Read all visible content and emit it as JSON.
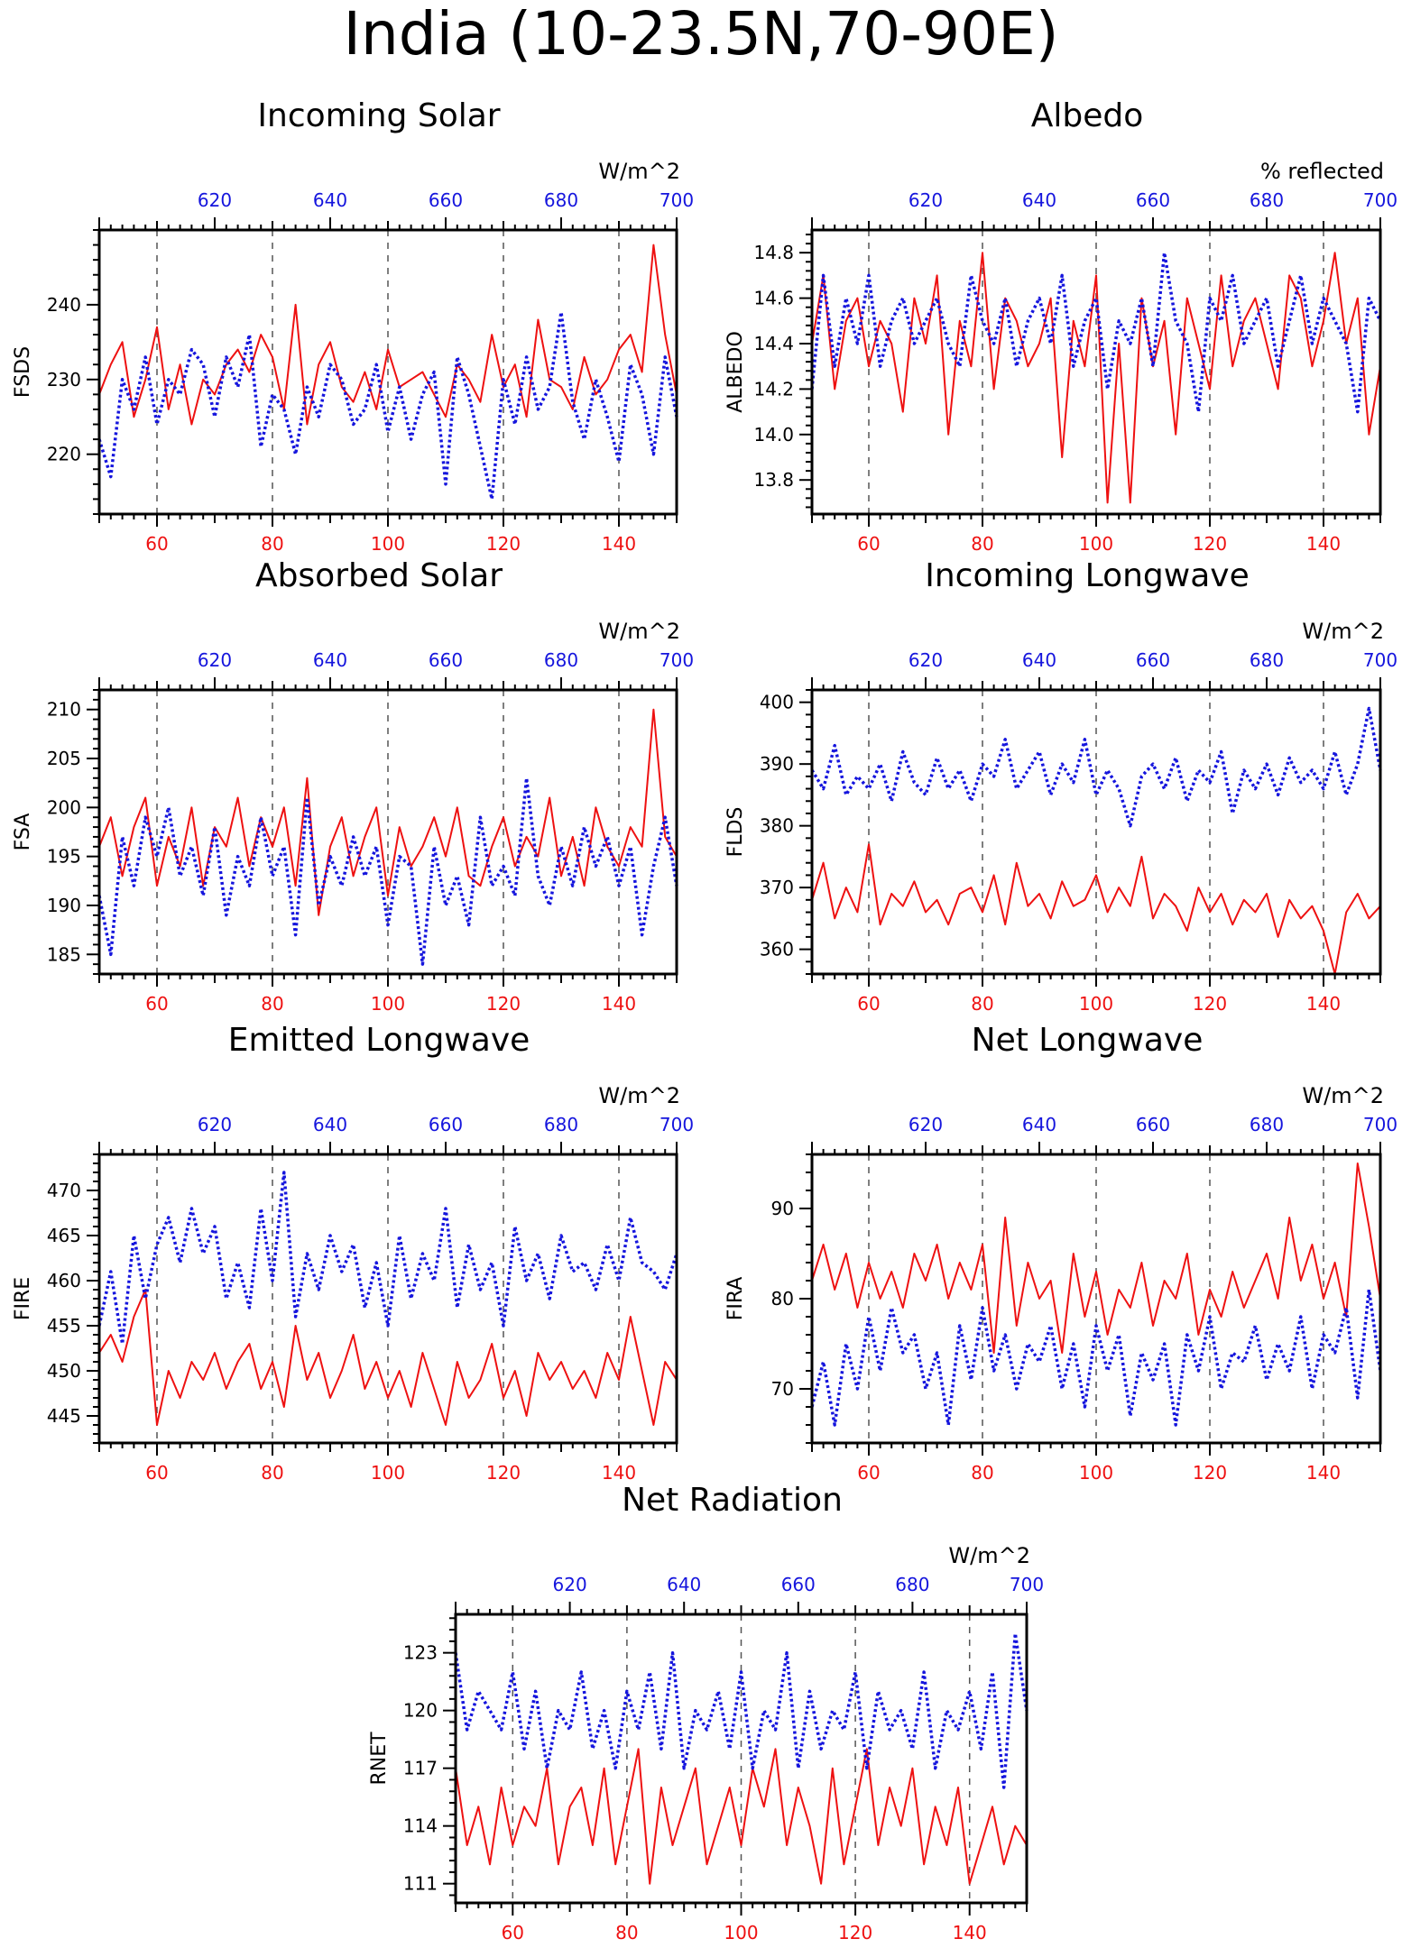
{
  "title": "India (10-23.5N,70-90E)",
  "colors": {
    "red": "#ee1111",
    "blue": "#1515dd",
    "frame": "#000000",
    "grid": "#555555"
  },
  "chart_data": [
    {
      "type": "line",
      "title": "Incoming Solar",
      "units": "W/m^2",
      "ylabel": "FSDS",
      "xlim": [
        50,
        150
      ],
      "ylim": [
        212,
        250
      ],
      "yticks": [
        220,
        230,
        240
      ],
      "xticks": [
        60,
        80,
        100,
        120,
        140
      ],
      "top_axis": {
        "ticks": [
          620,
          640,
          660,
          680,
          700
        ],
        "xlim": [
          600,
          700
        ]
      },
      "series": [
        {
          "color": "red",
          "style": "solid",
          "x_axis": "bottom",
          "values": [
            228,
            232,
            235,
            225,
            230,
            237,
            226,
            232,
            224,
            230,
            228,
            232,
            234,
            231,
            236,
            233,
            226,
            240,
            224,
            232,
            235,
            229,
            227,
            231,
            226,
            234,
            229,
            230,
            231,
            228,
            225,
            232,
            230,
            227,
            236,
            229,
            232,
            225,
            238,
            230,
            229,
            226,
            233,
            228,
            230,
            234,
            236,
            231,
            248,
            236,
            228
          ]
        },
        {
          "color": "blue",
          "style": "dotted",
          "x_axis": "top",
          "values": [
            222,
            217,
            230,
            226,
            233,
            224,
            230,
            228,
            234,
            232,
            225,
            233,
            229,
            236,
            221,
            228,
            226,
            220,
            229,
            225,
            232,
            230,
            224,
            226,
            232,
            223,
            229,
            222,
            228,
            231,
            216,
            233,
            228,
            221,
            214,
            230,
            224,
            233,
            226,
            229,
            239,
            227,
            222,
            230,
            225,
            219,
            232,
            228,
            220,
            233,
            225
          ]
        }
      ]
    },
    {
      "type": "line",
      "title": "Albedo",
      "units": "% reflected",
      "ylabel": "ALBEDO",
      "xlim": [
        50,
        150
      ],
      "ylim": [
        13.65,
        14.9
      ],
      "yticks": [
        13.8,
        14.0,
        14.2,
        14.4,
        14.6,
        14.8
      ],
      "xticks": [
        60,
        80,
        100,
        120,
        140
      ],
      "top_axis": {
        "ticks": [
          620,
          640,
          660,
          680,
          700
        ],
        "xlim": [
          600,
          700
        ]
      },
      "series": [
        {
          "color": "red",
          "style": "solid",
          "x_axis": "bottom",
          "values": [
            14.4,
            14.7,
            14.2,
            14.5,
            14.6,
            14.3,
            14.5,
            14.4,
            14.1,
            14.6,
            14.4,
            14.7,
            14.0,
            14.5,
            14.3,
            14.8,
            14.2,
            14.6,
            14.5,
            14.3,
            14.4,
            14.6,
            13.9,
            14.5,
            14.3,
            14.7,
            13.7,
            14.4,
            13.7,
            14.6,
            14.3,
            14.5,
            14.0,
            14.6,
            14.4,
            14.2,
            14.7,
            14.3,
            14.5,
            14.6,
            14.4,
            14.2,
            14.7,
            14.6,
            14.3,
            14.5,
            14.8,
            14.4,
            14.6,
            14.0,
            14.3
          ]
        },
        {
          "color": "blue",
          "style": "dotted",
          "x_axis": "top",
          "values": [
            14.2,
            14.7,
            14.3,
            14.6,
            14.4,
            14.7,
            14.3,
            14.5,
            14.6,
            14.4,
            14.5,
            14.6,
            14.4,
            14.3,
            14.7,
            14.5,
            14.4,
            14.6,
            14.3,
            14.5,
            14.6,
            14.4,
            14.7,
            14.3,
            14.5,
            14.6,
            14.2,
            14.5,
            14.4,
            14.6,
            14.3,
            14.8,
            14.5,
            14.4,
            14.1,
            14.6,
            14.5,
            14.7,
            14.4,
            14.5,
            14.6,
            14.3,
            14.5,
            14.7,
            14.4,
            14.6,
            14.5,
            14.4,
            14.1,
            14.6,
            14.5
          ]
        }
      ]
    },
    {
      "type": "line",
      "title": "Absorbed Solar",
      "units": "W/m^2",
      "ylabel": "FSA",
      "xlim": [
        50,
        150
      ],
      "ylim": [
        183,
        212
      ],
      "yticks": [
        185,
        190,
        195,
        200,
        205,
        210
      ],
      "xticks": [
        60,
        80,
        100,
        120,
        140
      ],
      "top_axis": {
        "ticks": [
          620,
          640,
          660,
          680,
          700
        ],
        "xlim": [
          600,
          700
        ]
      },
      "series": [
        {
          "color": "red",
          "style": "solid",
          "x_axis": "bottom",
          "values": [
            196,
            199,
            193,
            198,
            201,
            192,
            197,
            194,
            200,
            192,
            198,
            196,
            201,
            194,
            199,
            196,
            200,
            192,
            203,
            189,
            196,
            199,
            193,
            197,
            200,
            191,
            198,
            194,
            196,
            199,
            195,
            200,
            193,
            192,
            196,
            199,
            194,
            197,
            195,
            201,
            193,
            197,
            192,
            200,
            196,
            194,
            198,
            196,
            210,
            197,
            195
          ]
        },
        {
          "color": "blue",
          "style": "dotted",
          "x_axis": "top",
          "values": [
            191,
            185,
            197,
            192,
            199,
            195,
            200,
            193,
            196,
            191,
            198,
            189,
            195,
            192,
            199,
            193,
            196,
            187,
            201,
            190,
            195,
            192,
            197,
            193,
            196,
            188,
            195,
            194,
            184,
            196,
            190,
            193,
            188,
            199,
            192,
            194,
            191,
            203,
            193,
            190,
            196,
            192,
            198,
            194,
            197,
            192,
            196,
            187,
            194,
            199,
            192
          ]
        }
      ]
    },
    {
      "type": "line",
      "title": "Incoming Longwave",
      "units": "W/m^2",
      "ylabel": "FLDS",
      "xlim": [
        50,
        150
      ],
      "ylim": [
        356,
        402
      ],
      "yticks": [
        360,
        370,
        380,
        390,
        400
      ],
      "xticks": [
        60,
        80,
        100,
        120,
        140
      ],
      "top_axis": {
        "ticks": [
          620,
          640,
          660,
          680,
          700
        ],
        "xlim": [
          600,
          700
        ]
      },
      "series": [
        {
          "color": "red",
          "style": "solid",
          "x_axis": "bottom",
          "values": [
            368,
            374,
            365,
            370,
            366,
            377,
            364,
            369,
            367,
            371,
            366,
            368,
            364,
            369,
            370,
            366,
            372,
            364,
            374,
            367,
            369,
            365,
            371,
            367,
            368,
            372,
            366,
            370,
            367,
            375,
            365,
            369,
            367,
            363,
            370,
            366,
            369,
            364,
            368,
            366,
            369,
            362,
            368,
            365,
            367,
            363,
            356,
            366,
            369,
            365,
            367
          ]
        },
        {
          "color": "blue",
          "style": "dotted",
          "x_axis": "top",
          "values": [
            389,
            386,
            393,
            385,
            388,
            386,
            390,
            384,
            392,
            387,
            385,
            391,
            386,
            389,
            384,
            390,
            388,
            394,
            386,
            389,
            392,
            385,
            390,
            387,
            394,
            385,
            389,
            386,
            380,
            388,
            390,
            386,
            391,
            384,
            389,
            387,
            392,
            382,
            389,
            386,
            390,
            385,
            391,
            387,
            389,
            386,
            392,
            385,
            390,
            399,
            389
          ]
        }
      ]
    },
    {
      "type": "line",
      "title": "Emitted Longwave",
      "units": "W/m^2",
      "ylabel": "FIRE",
      "xlim": [
        50,
        150
      ],
      "ylim": [
        442,
        474
      ],
      "yticks": [
        445,
        450,
        455,
        460,
        465,
        470
      ],
      "xticks": [
        60,
        80,
        100,
        120,
        140
      ],
      "top_axis": {
        "ticks": [
          620,
          640,
          660,
          680,
          700
        ],
        "xlim": [
          600,
          700
        ]
      },
      "series": [
        {
          "color": "red",
          "style": "solid",
          "x_axis": "bottom",
          "values": [
            452,
            454,
            451,
            456,
            459,
            444,
            450,
            447,
            451,
            449,
            452,
            448,
            451,
            453,
            448,
            451,
            446,
            455,
            449,
            452,
            447,
            450,
            454,
            448,
            451,
            447,
            450,
            446,
            452,
            448,
            444,
            451,
            447,
            449,
            453,
            447,
            450,
            445,
            452,
            449,
            451,
            448,
            450,
            447,
            452,
            449,
            456,
            450,
            444,
            451,
            449
          ]
        },
        {
          "color": "blue",
          "style": "dotted",
          "x_axis": "top",
          "values": [
            455,
            461,
            453,
            465,
            458,
            464,
            467,
            462,
            468,
            463,
            466,
            458,
            462,
            457,
            468,
            460,
            472,
            456,
            463,
            459,
            465,
            461,
            464,
            457,
            462,
            455,
            465,
            458,
            463,
            460,
            468,
            457,
            464,
            459,
            462,
            455,
            466,
            460,
            463,
            458,
            465,
            461,
            462,
            459,
            464,
            460,
            467,
            462,
            461,
            459,
            463
          ]
        }
      ]
    },
    {
      "type": "line",
      "title": "Net Longwave",
      "units": "W/m^2",
      "ylabel": "FIRA",
      "xlim": [
        50,
        150
      ],
      "ylim": [
        64,
        96
      ],
      "yticks": [
        70,
        80,
        90
      ],
      "xticks": [
        60,
        80,
        100,
        120,
        140
      ],
      "top_axis": {
        "ticks": [
          620,
          640,
          660,
          680,
          700
        ],
        "xlim": [
          600,
          700
        ]
      },
      "series": [
        {
          "color": "red",
          "style": "solid",
          "x_axis": "bottom",
          "values": [
            82,
            86,
            81,
            85,
            79,
            84,
            80,
            83,
            79,
            85,
            82,
            86,
            80,
            84,
            81,
            86,
            74,
            89,
            77,
            84,
            80,
            82,
            74,
            85,
            78,
            83,
            76,
            81,
            79,
            84,
            77,
            82,
            80,
            85,
            76,
            81,
            78,
            83,
            79,
            82,
            85,
            80,
            89,
            82,
            86,
            80,
            84,
            78,
            95,
            88,
            80
          ]
        },
        {
          "color": "blue",
          "style": "dotted",
          "x_axis": "top",
          "values": [
            68,
            73,
            66,
            75,
            70,
            78,
            72,
            79,
            74,
            76,
            70,
            74,
            66,
            77,
            71,
            79,
            72,
            76,
            70,
            75,
            73,
            77,
            70,
            75,
            68,
            77,
            72,
            76,
            67,
            74,
            71,
            75,
            66,
            76,
            72,
            78,
            70,
            74,
            73,
            77,
            71,
            75,
            72,
            78,
            70,
            76,
            74,
            79,
            69,
            81,
            72
          ]
        }
      ]
    },
    {
      "type": "line",
      "title": "Net Radiation",
      "units": "W/m^2",
      "ylabel": "RNET",
      "xlim": [
        50,
        150
      ],
      "ylim": [
        110,
        125
      ],
      "yticks": [
        111,
        114,
        117,
        120,
        123
      ],
      "xticks": [
        60,
        80,
        100,
        120,
        140
      ],
      "top_axis": {
        "ticks": [
          620,
          640,
          660,
          680,
          700
        ],
        "xlim": [
          600,
          700
        ]
      },
      "series": [
        {
          "color": "red",
          "style": "solid",
          "x_axis": "bottom",
          "values": [
            117,
            113,
            115,
            112,
            116,
            113,
            115,
            114,
            117,
            112,
            115,
            116,
            113,
            117,
            112,
            115,
            118,
            111,
            116,
            113,
            115,
            117,
            112,
            114,
            116,
            113,
            117,
            115,
            118,
            113,
            116,
            114,
            111,
            117,
            112,
            115,
            118,
            113,
            116,
            114,
            117,
            112,
            115,
            113,
            116,
            111,
            113,
            115,
            112,
            114,
            113
          ]
        },
        {
          "color": "blue",
          "style": "dotted",
          "x_axis": "top",
          "values": [
            123,
            119,
            121,
            120,
            119,
            122,
            118,
            121,
            117,
            120,
            119,
            122,
            118,
            120,
            117,
            121,
            119,
            122,
            118,
            123,
            117,
            120,
            119,
            121,
            118,
            122,
            117,
            120,
            119,
            123,
            117,
            121,
            118,
            120,
            119,
            122,
            117,
            121,
            119,
            120,
            118,
            122,
            117,
            120,
            119,
            121,
            118,
            122,
            116,
            124,
            120
          ]
        }
      ]
    }
  ]
}
